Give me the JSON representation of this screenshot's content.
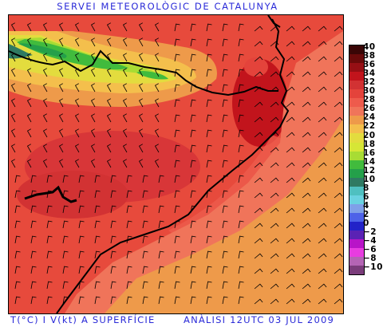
{
  "title": "SERVEI METEOROLÒGIC DE CATALUNYA",
  "caption_left": "T(°C) I V(kt) A SUPERFÍCIE",
  "caption_right": "ANÀLISI 12UTC 03 JUL 2009",
  "legend": {
    "labels": [
      "40",
      "38",
      "36",
      "34",
      "32",
      "30",
      "28",
      "26",
      "24",
      "22",
      "20",
      "18",
      "16",
      "14",
      "12",
      "10",
      "8",
      "6",
      "4",
      "2",
      "0",
      "−2",
      "−4",
      "−6",
      "−8",
      "−10"
    ],
    "colors": [
      "#3a0606",
      "#6a0a0a",
      "#960f14",
      "#c2141c",
      "#d23233",
      "#e4433b",
      "#ee5b4c",
      "#f0745a",
      "#ee9a4a",
      "#f4bf4c",
      "#e3dc3e",
      "#d6e636",
      "#a8dc34",
      "#41bb3d",
      "#24a04a",
      "#2f7a62",
      "#4fc0c0",
      "#6ad2e0",
      "#7fa0e8",
      "#4d62e8",
      "#2222c8",
      "#5a22b4",
      "#b814c8",
      "#e83ce0",
      "#b464b4",
      "#7a3c7a"
    ]
  }
}
